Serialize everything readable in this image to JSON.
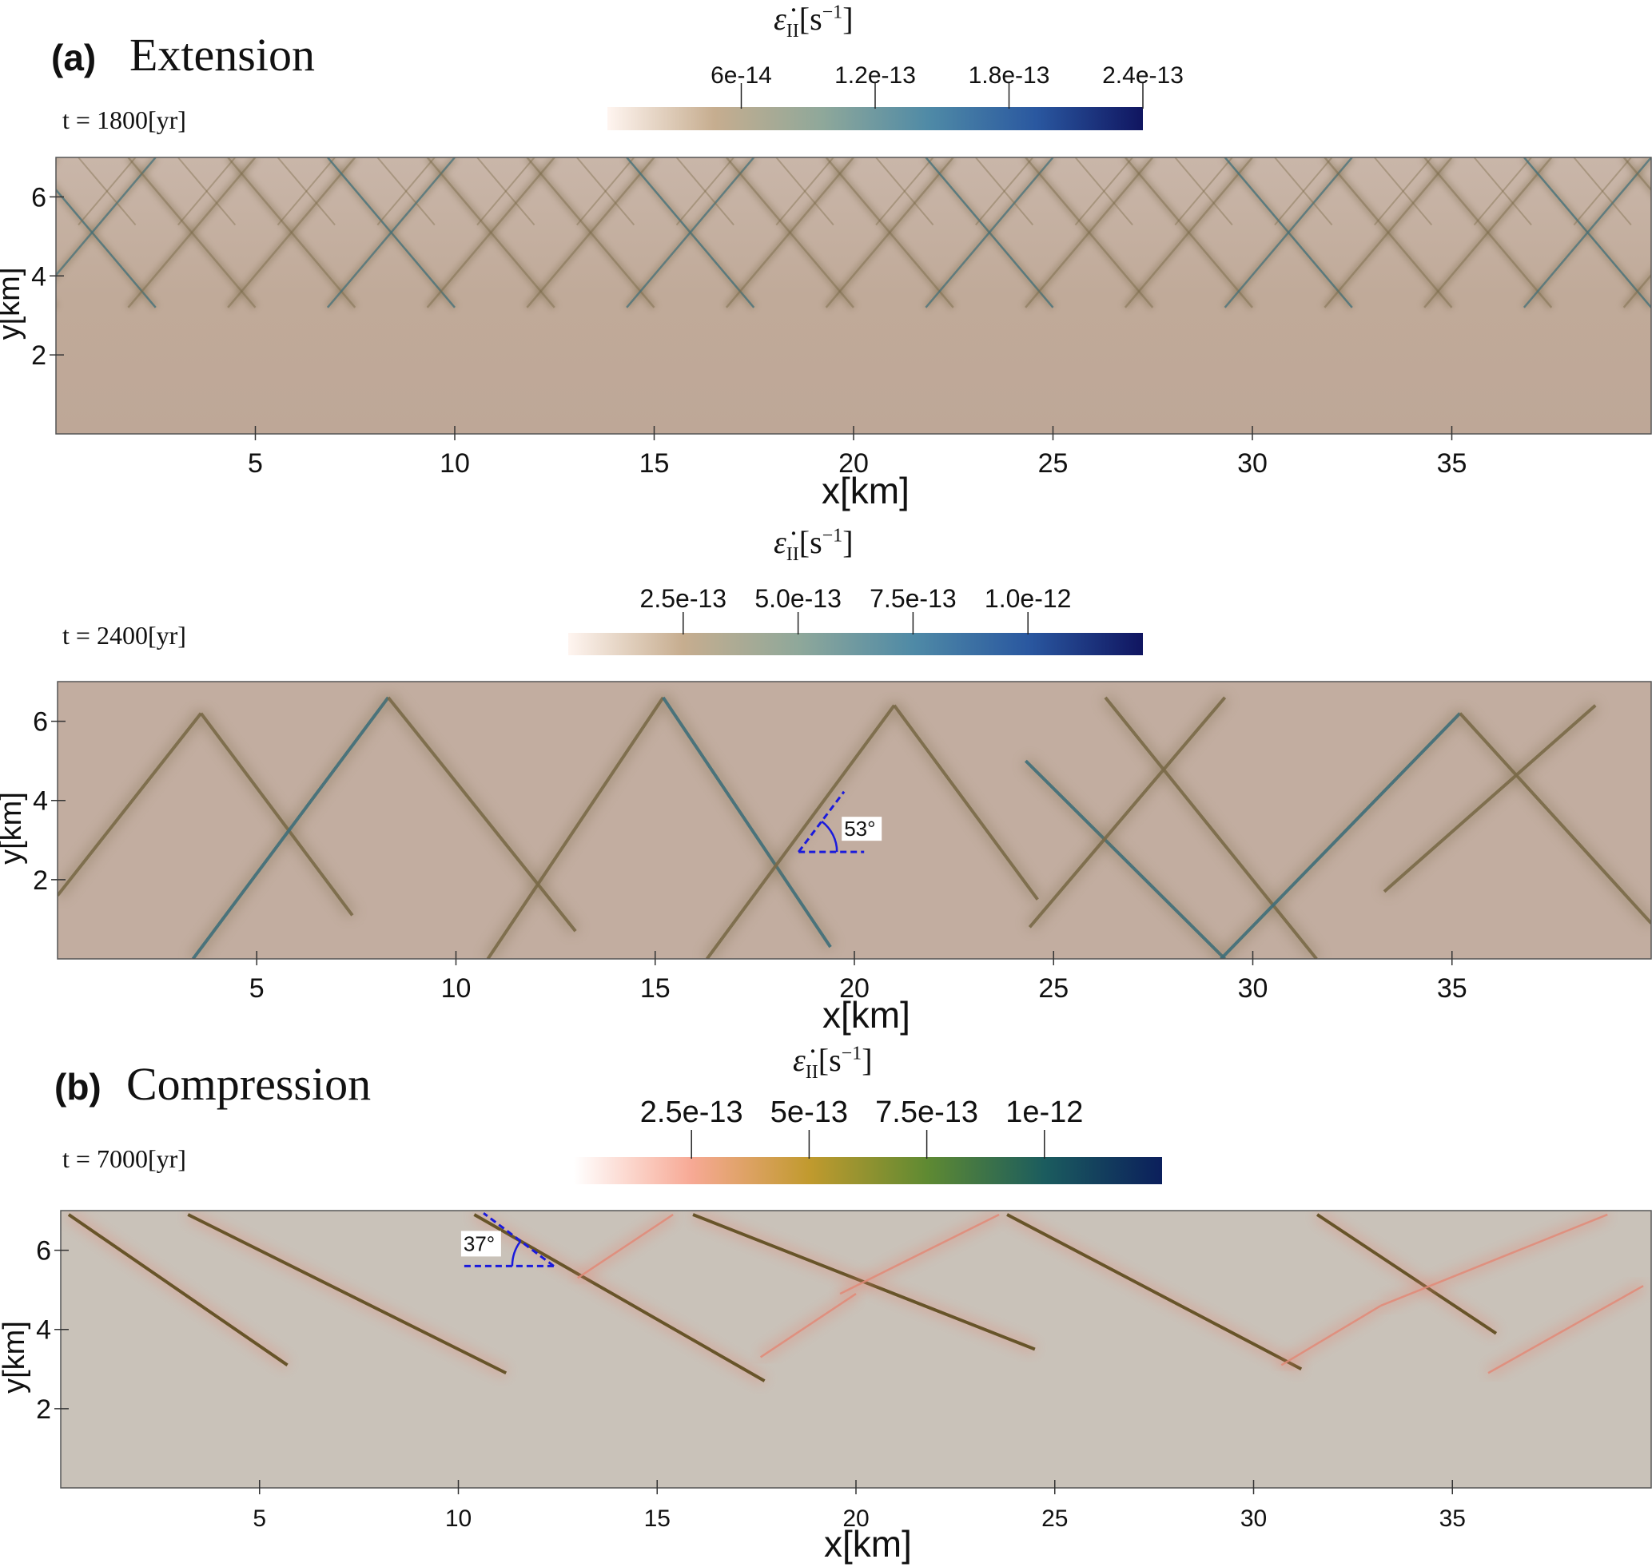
{
  "panel_a": {
    "letter": "(a)",
    "name": "Extension"
  },
  "panel_b": {
    "letter": "(b)",
    "name": "Compression"
  },
  "colorbar_units": "[s",
  "colorbar_exponent": "−1",
  "colorbar_close": "]",
  "colorbar_symbol": "ε̇",
  "colorbar_subscript": "II",
  "colors": {
    "field_extension": "#c2ada0",
    "field_compression": "#c9c2b9",
    "shear_band_extension": "#7a6a48",
    "shear_band_core_extension": "#3f6f7a",
    "shear_band_compression": "#5c4a1c",
    "shear_band_halo_compression": "#e28a78",
    "angle_marker": "#1a1adc",
    "colormap_extension": [
      "#fff5f0",
      "#c6ad8f",
      "#8fa89a",
      "#4f8aa6",
      "#2a58a0",
      "#101560"
    ],
    "colormap_compression": [
      "#ffffff",
      "#f7a995",
      "#c19a2e",
      "#5f8a32",
      "#1b5c5e",
      "#0b1f5c"
    ]
  },
  "chart_data": [
    {
      "type": "heatmap",
      "field": "second invariant of strain rate",
      "time_label": "t = 1800[yr]",
      "time": 1800,
      "time_unit": "yr",
      "xlabel": "x[km]",
      "ylabel": "y[km]",
      "xlim": [
        0,
        40
      ],
      "ylim": [
        0,
        7
      ],
      "xticks": [
        5,
        10,
        15,
        20,
        25,
        30,
        35
      ],
      "yticks": [
        2,
        4,
        6
      ],
      "colorbar": {
        "title": "ε̇II[s−1]",
        "range": [
          0,
          2.4e-13
        ],
        "ticks": [
          "6e-14",
          "1.2e-13",
          "1.8e-13",
          "2.4e-13"
        ],
        "tick_values": [
          6e-14,
          1.2e-13,
          1.8e-13,
          2.4e-13
        ]
      },
      "shear_band_spacing_km": 2.5,
      "shear_band_depth_km": [
        3.2,
        7
      ]
    },
    {
      "type": "heatmap",
      "field": "second invariant of strain rate",
      "time_label": "t = 2400[yr]",
      "time": 2400,
      "time_unit": "yr",
      "xlabel": "x[km]",
      "ylabel": "y[km]",
      "xlim": [
        0,
        40
      ],
      "ylim": [
        0,
        7
      ],
      "xticks": [
        5,
        10,
        15,
        20,
        25,
        30,
        35
      ],
      "yticks": [
        2,
        4,
        6
      ],
      "colorbar": {
        "title": "ε̇II[s−1]",
        "range": [
          0,
          1.25e-12
        ],
        "ticks": [
          "2.5e-13",
          "5.0e-13",
          "7.5e-13",
          "1.0e-12"
        ],
        "tick_values": [
          2.5e-13,
          5e-13,
          7.5e-13,
          1e-12
        ]
      },
      "angle_annotation": {
        "label": "53°",
        "angle_deg": 53,
        "vertex": [
          18.6,
          2.7
        ]
      },
      "shear_bands": [
        [
          [
            0,
            1.6
          ],
          [
            3.6,
            6.2
          ]
        ],
        [
          [
            3.6,
            6.2
          ],
          [
            7.4,
            1.1
          ]
        ],
        [
          [
            3.4,
            0.0
          ],
          [
            8.3,
            6.6
          ]
        ],
        [
          [
            8.3,
            6.6
          ],
          [
            13.0,
            0.7
          ]
        ],
        [
          [
            10.8,
            0.0
          ],
          [
            15.2,
            6.6
          ]
        ],
        [
          [
            15.2,
            6.6
          ],
          [
            19.4,
            0.3
          ]
        ],
        [
          [
            16.3,
            0.0
          ],
          [
            21.0,
            6.4
          ]
        ],
        [
          [
            21.0,
            6.4
          ],
          [
            24.6,
            1.5
          ]
        ],
        [
          [
            24.3,
            5.0
          ],
          [
            29.3,
            0.0
          ]
        ],
        [
          [
            24.4,
            0.8
          ],
          [
            29.3,
            6.6
          ]
        ],
        [
          [
            26.3,
            6.6
          ],
          [
            31.6,
            0.0
          ]
        ],
        [
          [
            29.2,
            0.0
          ],
          [
            35.2,
            6.2
          ]
        ],
        [
          [
            35.2,
            6.2
          ],
          [
            40.0,
            0.9
          ]
        ],
        [
          [
            33.3,
            1.7
          ],
          [
            38.6,
            6.4
          ]
        ]
      ]
    },
    {
      "type": "heatmap",
      "field": "second invariant of strain rate",
      "time_label": "t = 7000[yr]",
      "time": 7000,
      "time_unit": "yr",
      "xlabel": "x[km]",
      "ylabel": "y[km]",
      "xlim": [
        0,
        40
      ],
      "ylim": [
        0,
        7
      ],
      "xticks": [
        5,
        10,
        15,
        20,
        25,
        30,
        35
      ],
      "yticks": [
        2,
        4,
        6
      ],
      "colorbar": {
        "title": "ε̇II[s−1]",
        "range": [
          0,
          1.25e-12
        ],
        "ticks": [
          "2.5e-13",
          "5e-13",
          "7.5e-13",
          "1e-12"
        ],
        "tick_values": [
          2.5e-13,
          5e-13,
          7.5e-13,
          1e-12
        ]
      },
      "angle_annotation": {
        "label": "37°",
        "angle_deg": 37,
        "vertex": [
          12.4,
          5.6
        ]
      },
      "shear_bands": [
        [
          [
            0.2,
            6.9
          ],
          [
            5.7,
            3.1
          ]
        ],
        [
          [
            3.2,
            6.9
          ],
          [
            11.2,
            2.9
          ]
        ],
        [
          [
            10.4,
            6.9
          ],
          [
            17.7,
            2.7
          ]
        ],
        [
          [
            13.0,
            5.3
          ],
          [
            15.4,
            6.9
          ]
        ],
        [
          [
            15.9,
            6.9
          ],
          [
            24.5,
            3.5
          ]
        ],
        [
          [
            19.6,
            4.9
          ],
          [
            23.6,
            6.9
          ]
        ],
        [
          [
            17.6,
            3.3
          ],
          [
            20.0,
            4.9
          ]
        ],
        [
          [
            23.8,
            6.9
          ],
          [
            31.2,
            3.0
          ]
        ],
        [
          [
            31.6,
            6.9
          ],
          [
            36.1,
            3.9
          ]
        ],
        [
          [
            30.7,
            3.1
          ],
          [
            33.2,
            4.6
          ]
        ],
        [
          [
            33.2,
            4.6
          ],
          [
            38.9,
            6.9
          ]
        ],
        [
          [
            39.8,
            5.1
          ],
          [
            35.9,
            2.9
          ]
        ]
      ]
    }
  ]
}
